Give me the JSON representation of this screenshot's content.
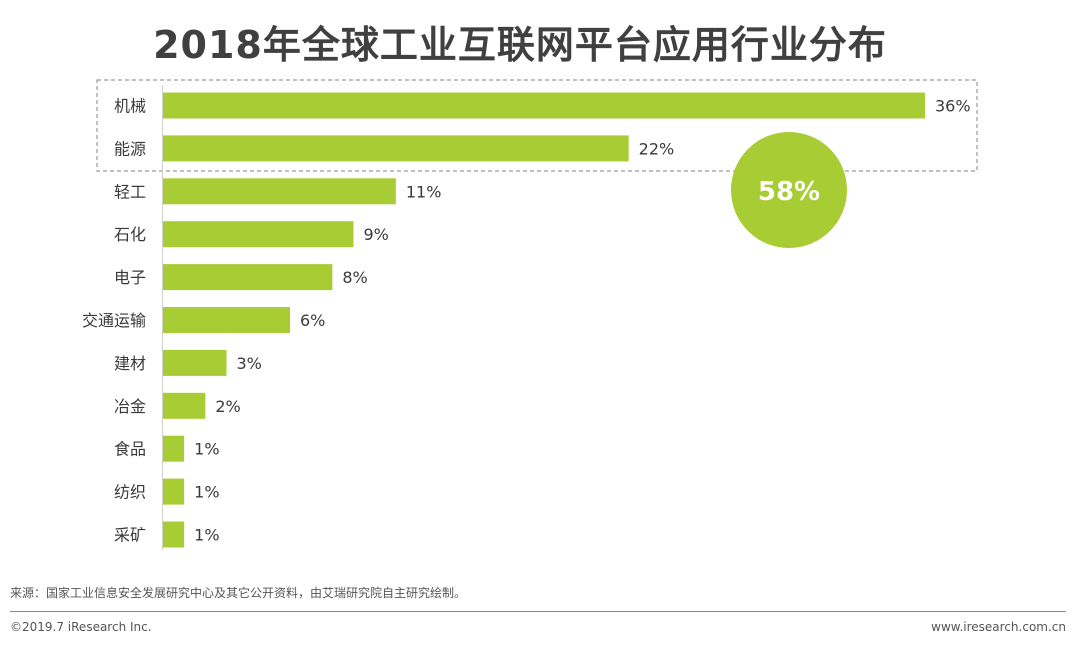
{
  "title": "2018年全球工业互联网平台应用行业分布",
  "chart_data": {
    "type": "bar",
    "orientation": "horizontal",
    "categories": [
      "机械",
      "能源",
      "轻工",
      "石化",
      "电子",
      "交通运输",
      "建材",
      "冶金",
      "食品",
      "纺织",
      "采矿"
    ],
    "values": [
      36,
      22,
      11,
      9,
      8,
      6,
      3,
      2,
      1,
      1,
      1
    ],
    "value_labels": [
      "36%",
      "22%",
      "11%",
      "9%",
      "8%",
      "6%",
      "3%",
      "2%",
      "1%",
      "1%",
      "1%"
    ],
    "title": "2018年全球工业互联网平台应用行业分布",
    "xlabel": "",
    "ylabel": "",
    "xlim": [
      0,
      36
    ],
    "grid": false,
    "legend": "none",
    "bar_color": "#a8cc33",
    "highlight": {
      "categories": [
        "机械",
        "能源"
      ],
      "total_label": "58%",
      "circle_color": "#a8cc33"
    }
  },
  "footer": {
    "source": "来源：国家工业信息安全发展研究中心及其它公开资料，由艾瑞研究院自主研究绘制。",
    "copyright": "©2019.7 iResearch Inc.",
    "website": "www.iresearch.com.cn"
  }
}
